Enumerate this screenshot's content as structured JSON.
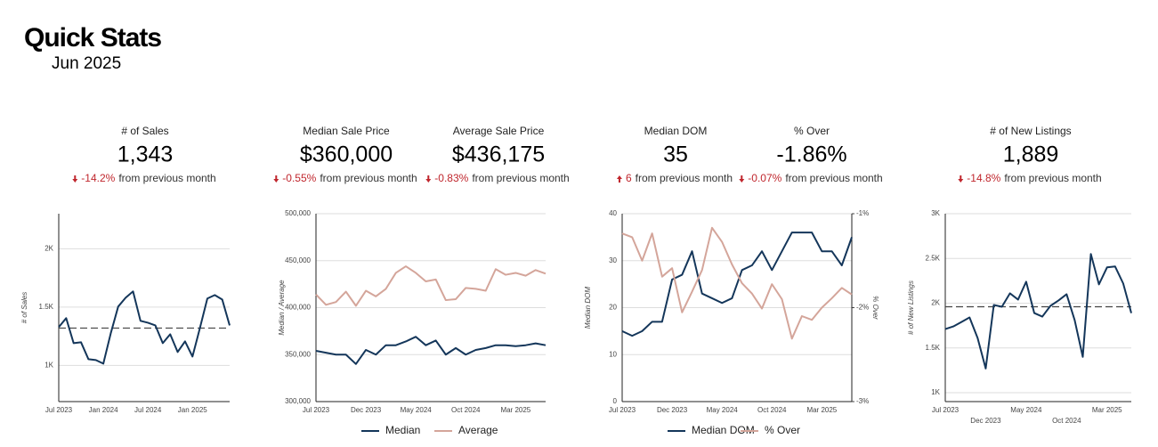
{
  "header": {
    "title": "Quick Stats",
    "subtitle": "Jun 2025"
  },
  "kpis": [
    {
      "label": "# of Sales",
      "value": "1,343",
      "change": "-14.2%",
      "direction": "down",
      "note": "from previous month"
    },
    {
      "label": "Median Sale Price",
      "value": "$360,000",
      "change": "-0.55%",
      "direction": "down",
      "note": "from previous month"
    },
    {
      "label": "Average Sale Price",
      "value": "$436,175",
      "change": "-0.83%",
      "direction": "down",
      "note": "from previous month"
    },
    {
      "label": "Median DOM",
      "value": "35",
      "change": "6",
      "direction": "up",
      "note": "from previous month"
    },
    {
      "label": "% Over",
      "value": "-1.86%",
      "change": "-0.07%",
      "direction": "down",
      "note": "from previous month"
    },
    {
      "label": "# of New Listings",
      "value": "1,889",
      "change": "-14.8%",
      "direction": "down",
      "note": "from previous month"
    }
  ],
  "chart_data": [
    {
      "type": "line",
      "y_label": "# of Sales",
      "categories": [
        "Jul 2023",
        null,
        null,
        null,
        null,
        null,
        "Jan 2024",
        null,
        null,
        null,
        null,
        null,
        "Jul 2024",
        null,
        null,
        null,
        null,
        null,
        "Jan 2025",
        null,
        null,
        null,
        null,
        null
      ],
      "series": [
        {
          "color": "#14365a",
          "values": [
            1328,
            1405,
            1191,
            1198,
            1053,
            1046,
            1015,
            1275,
            1504,
            1580,
            1634,
            1382,
            1366,
            1343,
            1191,
            1267,
            1115,
            1206,
            1076,
            1320,
            1573,
            1603,
            1565,
            1343
          ]
        }
      ],
      "reference_value": 1320,
      "reference_color": "#444444",
      "ylim": [
        690,
        2300
      ],
      "yticks": [
        {
          "value": 1000,
          "label": "1K"
        },
        {
          "value": 1500,
          "label": "1.5K"
        },
        {
          "value": 2000,
          "label": "2K"
        }
      ],
      "grid": true
    },
    {
      "type": "line",
      "y_label": "Median / Average",
      "categories": [
        "Jul 2023",
        null,
        null,
        null,
        null,
        "Dec 2023",
        null,
        null,
        null,
        null,
        "May 2024",
        null,
        null,
        null,
        null,
        "Oct 2024",
        null,
        null,
        null,
        null,
        "Mar 2025",
        null,
        null,
        null
      ],
      "series": [
        {
          "name": "Median",
          "color": "#14365a",
          "values": [
            354000,
            352000,
            350000,
            350000,
            340000,
            355000,
            350000,
            360000,
            360000,
            364000,
            369000,
            360000,
            365000,
            350000,
            357000,
            350000,
            355000,
            357000,
            360000,
            360000,
            359000,
            360000,
            362000,
            360000
          ]
        },
        {
          "name": "Average",
          "color": "#d4a59a",
          "values": [
            414000,
            403000,
            406000,
            417000,
            402000,
            418000,
            412000,
            420000,
            437000,
            444000,
            437000,
            428000,
            430000,
            408000,
            409000,
            421000,
            420000,
            418000,
            441000,
            435000,
            437000,
            434000,
            440000,
            436175
          ]
        }
      ],
      "ylim": [
        300000,
        500000
      ],
      "yticks": [
        {
          "value": 300000,
          "label": "300,000"
        },
        {
          "value": 350000,
          "label": "350,000"
        },
        {
          "value": 400000,
          "label": "400,000"
        },
        {
          "value": 450000,
          "label": "450,000"
        },
        {
          "value": 500000,
          "label": "500,000"
        }
      ],
      "grid": true
    },
    {
      "type": "line",
      "y_label": "Median DOM",
      "y2_label": "% Over",
      "categories": [
        "Jul 2023",
        null,
        null,
        null,
        null,
        "Dec 2023",
        null,
        null,
        null,
        null,
        "May 2024",
        null,
        null,
        null,
        null,
        "Oct 2024",
        null,
        null,
        null,
        null,
        "Mar 2025",
        null,
        null,
        null
      ],
      "series": [
        {
          "name": "Median DOM",
          "color": "#14365a",
          "values": [
            15,
            14,
            15,
            17,
            17,
            26,
            27,
            32,
            23,
            22,
            21,
            22,
            28,
            29,
            32,
            28,
            32,
            36,
            36,
            36,
            32,
            32,
            29,
            35
          ]
        },
        {
          "name": "% Over",
          "color": "#d4a59a",
          "axis": "y2",
          "values": [
            -1.21,
            -1.25,
            -1.5,
            -1.21,
            -1.67,
            -1.58,
            -2.05,
            -1.83,
            -1.6,
            -1.15,
            -1.3,
            -1.54,
            -1.74,
            -1.85,
            -2.01,
            -1.75,
            -1.91,
            -2.33,
            -2.09,
            -2.13,
            -2.0,
            -1.9,
            -1.79,
            -1.86
          ]
        }
      ],
      "ylim": [
        0,
        40
      ],
      "yticks": [
        0,
        10,
        20,
        30,
        40
      ],
      "y2lim": [
        -3,
        -1
      ],
      "y2ticks": [
        {
          "value": -3,
          "label": "-3%"
        },
        {
          "value": -2,
          "label": "-2%"
        },
        {
          "value": -1,
          "label": "-1%"
        }
      ],
      "grid": true
    },
    {
      "type": "line",
      "y_label": "# of New Listings",
      "x_label_stagger": true,
      "categories": [
        "Jul 2023",
        null,
        null,
        null,
        null,
        "Dec 2023",
        null,
        null,
        null,
        null,
        "May 2024",
        null,
        null,
        null,
        null,
        "Oct 2024",
        null,
        null,
        null,
        null,
        "Mar 2025",
        null,
        null,
        null
      ],
      "series": [
        {
          "color": "#14365a",
          "values": [
            1710,
            1740,
            1790,
            1840,
            1610,
            1270,
            1980,
            1960,
            2110,
            2040,
            2240,
            1890,
            1850,
            1970,
            2030,
            2100,
            1810,
            1400,
            2550,
            2210,
            2400,
            2410,
            2220,
            1889
          ]
        }
      ],
      "reference_value": 1960,
      "reference_color": "#444444",
      "ylim": [
        900,
        3000
      ],
      "yticks": [
        {
          "value": 1000,
          "label": "1K"
        },
        {
          "value": 1500,
          "label": "1.5K"
        },
        {
          "value": 2000,
          "label": "2K"
        },
        {
          "value": 2500,
          "label": "2.5K"
        },
        {
          "value": 3000,
          "label": "3K"
        }
      ],
      "grid": true
    }
  ]
}
